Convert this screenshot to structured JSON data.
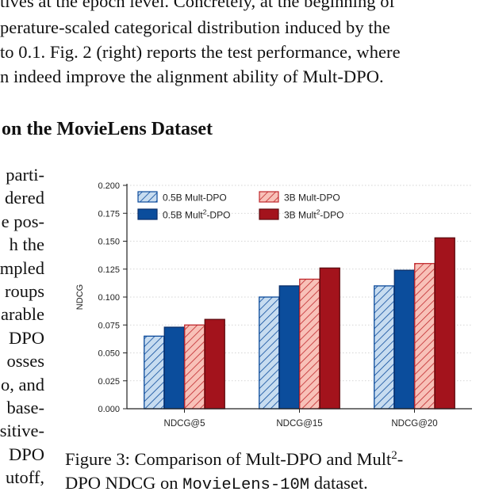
{
  "top_lines": [
    "tives at the epoch level. Concretely, at the beginning of",
    "perature-scaled categorical distribution induced by the",
    "to 0.1. Fig. 2 (right) reports the test performance, where",
    "n indeed improve the alignment ability of Mult-DPO."
  ],
  "section_heading": "on the MovieLens Dataset",
  "left_lines": [
    "parti-",
    "dered",
    "e pos-",
    "h the",
    "mpled",
    "roups",
    "arable",
    "DPO",
    "osses",
    "o, and",
    "base-",
    "sitive-",
    "DPO",
    "utoff,"
  ],
  "caption": {
    "label": "Figure 3: Comparison of Mult-DPO and  Mult",
    "sup": "2",
    "line1_end": "-",
    "line2_start": "DPO NDCG on ",
    "dataset_name": "MovieLens-10M",
    "line2_end": " dataset."
  },
  "colors": {
    "light_blue_fill": "#c7dcf0",
    "blue_edge": "#0b4a9b",
    "dark_blue": "#0b4d9c",
    "light_red_fill": "#f8c1b8",
    "red_edge": "#c0282d",
    "dark_red": "#a3131c"
  },
  "chart_data": {
    "type": "bar",
    "title": "",
    "xlabel": "",
    "ylabel": "NDCG",
    "ylim": [
      0,
      0.2
    ],
    "yticks": [
      "0.000",
      "0.025",
      "0.050",
      "0.075",
      "0.100",
      "0.125",
      "0.150",
      "0.175",
      "0.200"
    ],
    "grid": true,
    "legend_placement": "top-left",
    "categories": [
      "NDCG@5",
      "NDCG@15",
      "NDCG@20"
    ],
    "series": [
      {
        "name": "0.5B Mult-DPO",
        "name_base": "0.5B Mult",
        "name_sup": "",
        "name_tail": "-DPO",
        "values": [
          0.065,
          0.1,
          0.11
        ],
        "hatched": true,
        "fill": "#c7dcf0",
        "edge": "#0b4a9b"
      },
      {
        "name": "0.5B Mult2-DPO",
        "name_base": "0.5B Mult",
        "name_sup": "2",
        "name_tail": "-DPO",
        "values": [
          0.073,
          0.11,
          0.124
        ],
        "hatched": false,
        "fill": "#0b4d9c",
        "edge": "#0a2f6a"
      },
      {
        "name": "3B Mult-DPO",
        "name_base": "3B Mult",
        "name_sup": "",
        "name_tail": "-DPO",
        "values": [
          0.075,
          0.116,
          0.13
        ],
        "hatched": true,
        "fill": "#f8c1b8",
        "edge": "#c0282d"
      },
      {
        "name": "3B Mult2-DPO",
        "name_base": "3B Mult",
        "name_sup": "2",
        "name_tail": "-DPO",
        "values": [
          0.08,
          0.126,
          0.153
        ],
        "hatched": false,
        "fill": "#a3131c",
        "edge": "#5e0c10"
      }
    ]
  }
}
